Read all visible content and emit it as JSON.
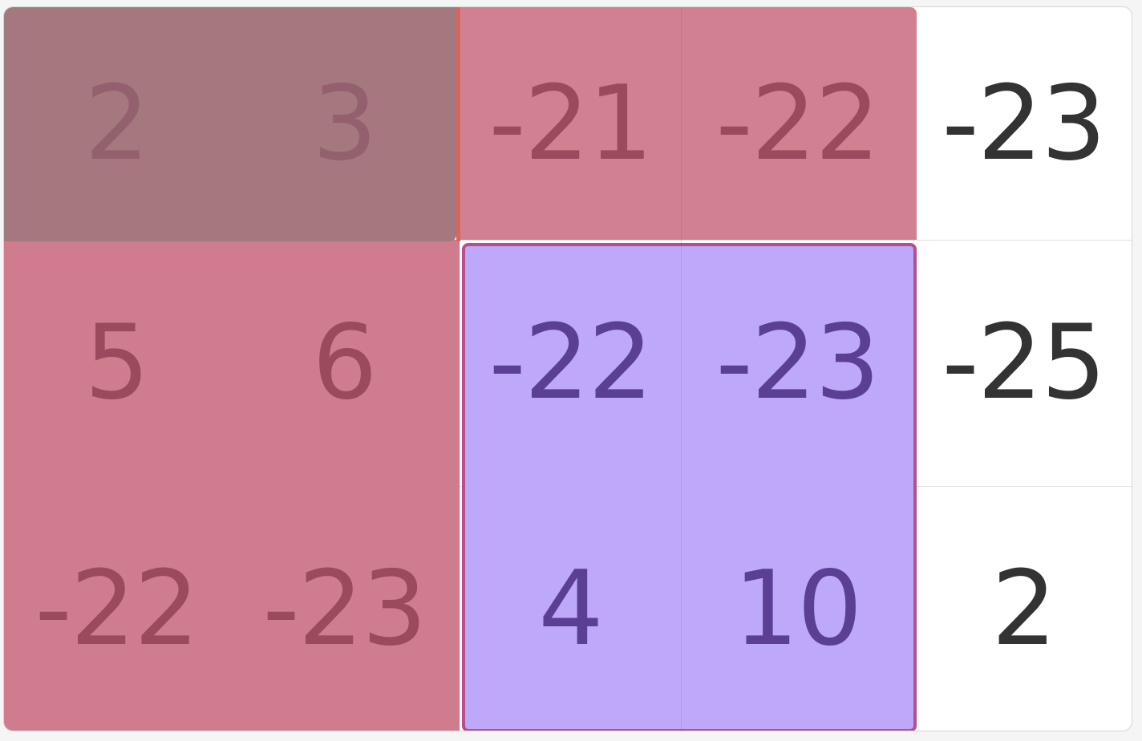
{
  "rows": [
    [
      "2",
      "3",
      "-21",
      "-22",
      "-23"
    ],
    [
      "5",
      "6",
      "-22",
      "-23",
      "-25"
    ],
    [
      "-22",
      "-23",
      "4",
      "10",
      "2"
    ]
  ],
  "colors": {
    "selection_pink": "#cf7c8e",
    "selection_gray": "#a57880",
    "selection_blue": "#bea8f9",
    "blue_border": "#b4508a",
    "red_edge": "#d9665e",
    "text_pink": "#9a4a5c",
    "text_gray": "#93616d",
    "text_blue": "#5b3f94",
    "text_plain": "#333333"
  }
}
